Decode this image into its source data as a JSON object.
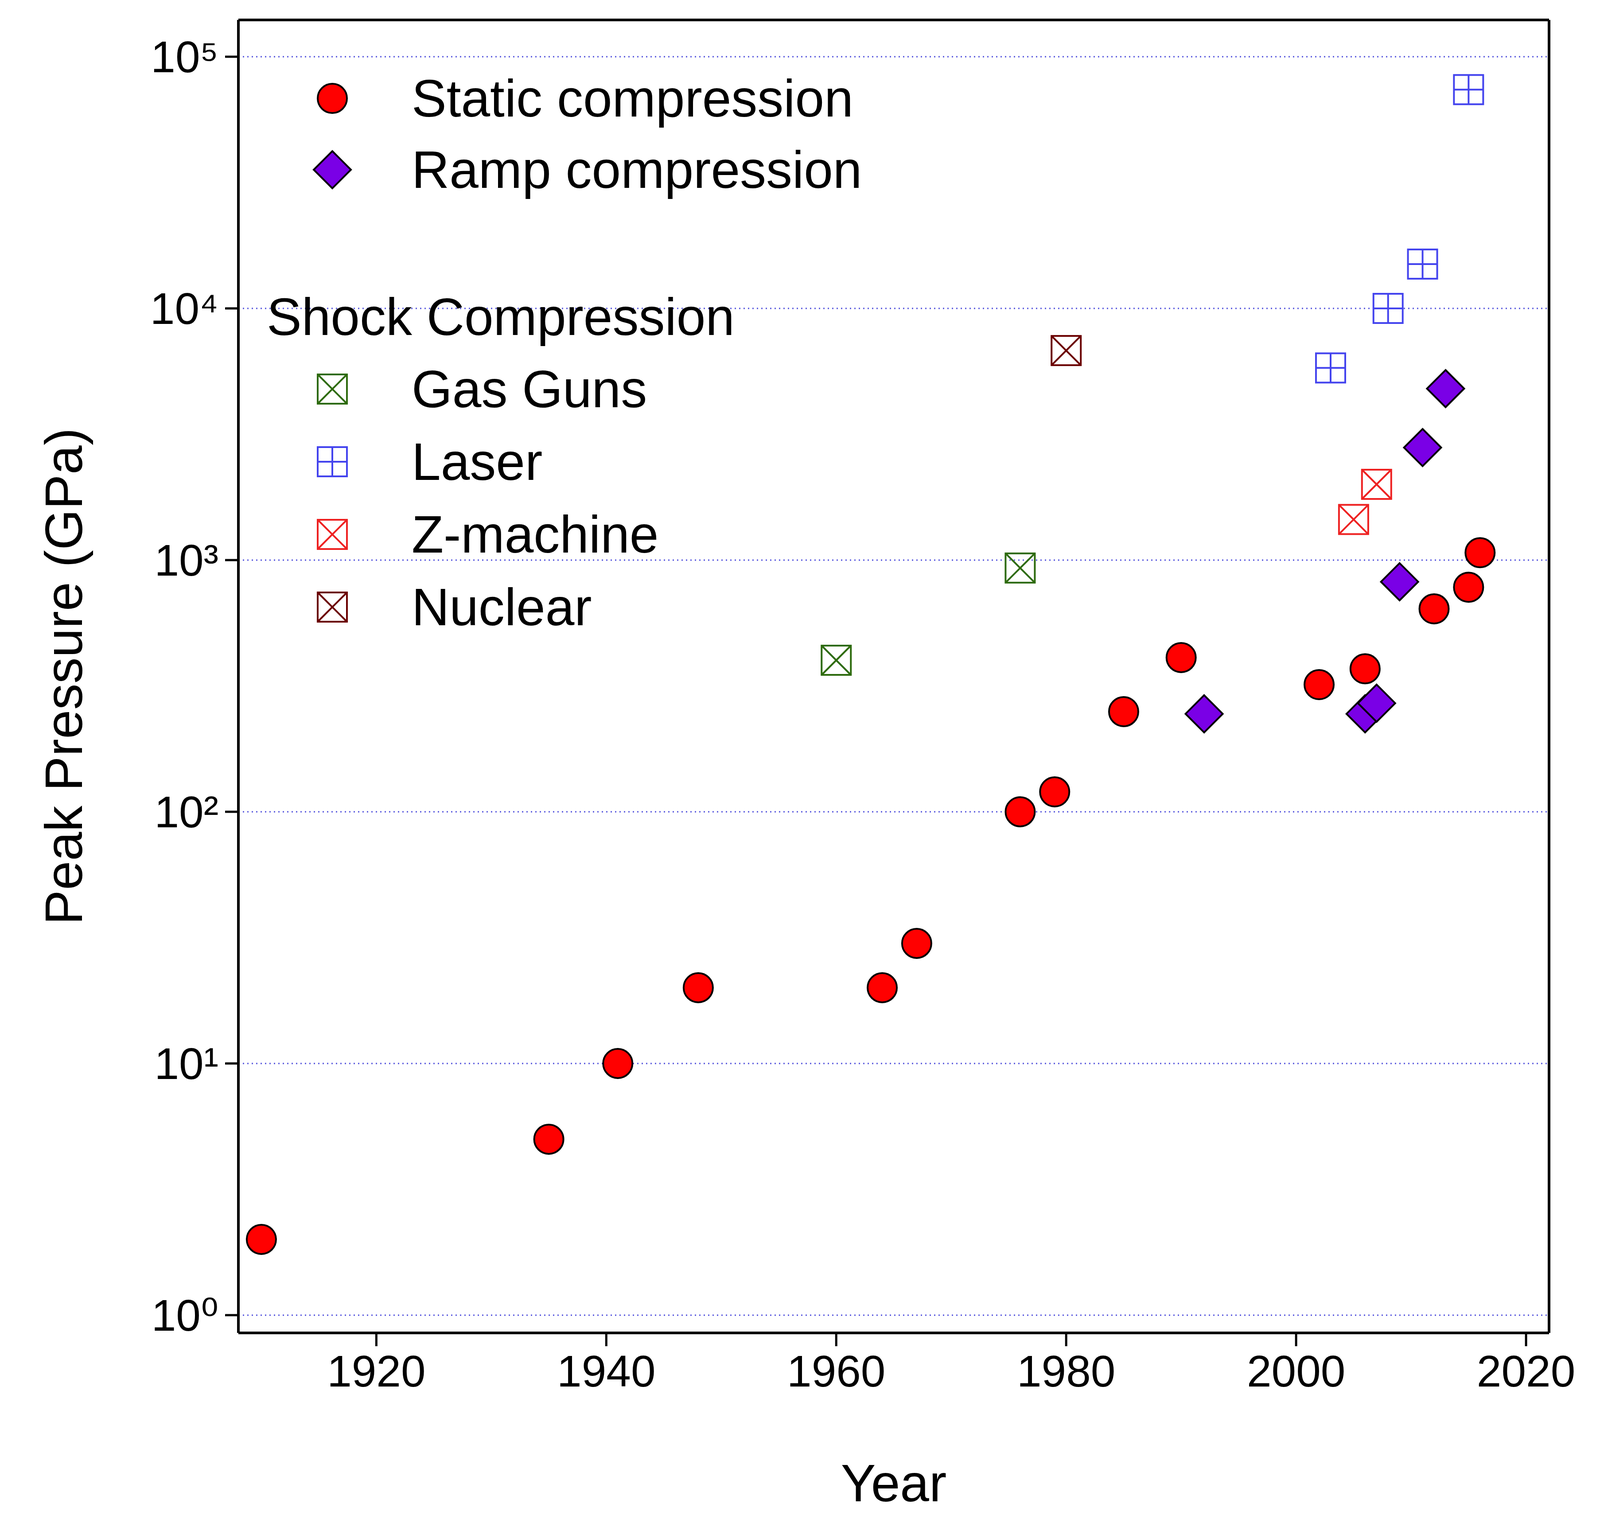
{
  "chart_data": {
    "type": "scatter",
    "x_label": "Year",
    "y_label": "Peak Pressure (GPa)",
    "xlim": [
      1908,
      2022
    ],
    "xticks": [
      1920,
      1940,
      1960,
      1980,
      2000,
      2020
    ],
    "ylim": [
      0.85,
      140000
    ],
    "yticks": [
      {
        "value": 1,
        "label": "10⁰"
      },
      {
        "value": 10,
        "label": "10¹"
      },
      {
        "value": 100,
        "label": "10²"
      },
      {
        "value": 1000,
        "label": "10³"
      },
      {
        "value": 10000,
        "label": "10⁴"
      },
      {
        "value": 100000,
        "label": "10⁵"
      }
    ],
    "log": "y",
    "grid": true,
    "legend": "upper left",
    "series": [
      {
        "name": "Static compression",
        "color": "#ff0000",
        "marker": "circle",
        "x": [
          1910,
          1935,
          1941,
          1948,
          1964,
          1967,
          1976,
          1979,
          1985,
          1990,
          2002,
          2006,
          2012,
          2015,
          2016
        ],
        "values": [
          2,
          5,
          10,
          20,
          20,
          30,
          100,
          120,
          250,
          410,
          320,
          370,
          640,
          780,
          1070
        ]
      },
      {
        "name": "Ramp compression",
        "color": "#7a00e6",
        "marker": "diamond",
        "x": [
          1992,
          2006,
          2007,
          2009,
          2011,
          2013
        ],
        "values": [
          245,
          245,
          270,
          820,
          2800,
          4800
        ]
      }
    ],
    "shock_compression": {
      "title": "Shock Compression",
      "series": [
        {
          "name": "Gas Guns",
          "color": "#2e6b0e",
          "marker": "square_x",
          "x": [
            1960,
            1976
          ],
          "values": [
            400,
            930
          ]
        },
        {
          "name": "Laser",
          "color": "#4444ee",
          "marker": "square_plus",
          "x": [
            2003,
            2008,
            2011,
            2015
          ],
          "values": [
            5800,
            10000,
            15000,
            74000
          ]
        },
        {
          "name": "Z-machine",
          "color": "#ee2222",
          "marker": "square_x",
          "x": [
            2005,
            2007
          ],
          "values": [
            1450,
            2000
          ]
        },
        {
          "name": "Nuclear",
          "color": "#6b0000",
          "marker": "square_x",
          "x": [
            1980
          ],
          "values": [
            6800
          ]
        }
      ]
    }
  }
}
